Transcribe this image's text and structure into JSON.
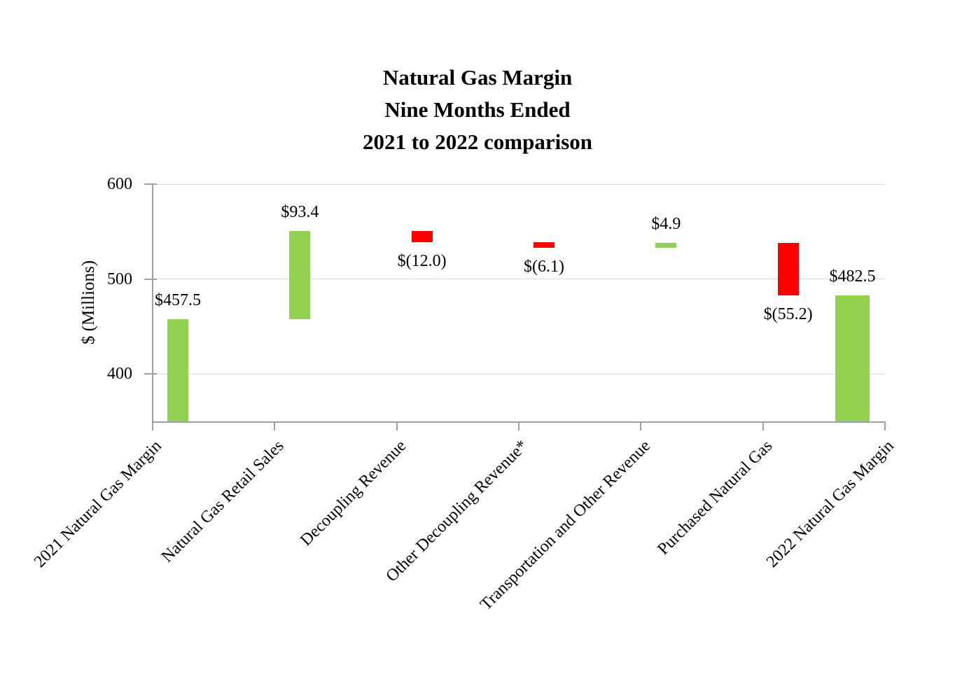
{
  "title": {
    "line1": "Natural Gas Margin",
    "line2": "Nine Months Ended",
    "line3": "2021 to 2022 comparison"
  },
  "chart_data": {
    "type": "waterfall",
    "title": "Natural Gas Margin Nine Months Ended 2021 to 2022 comparison",
    "ylabel": "$ (Millions)",
    "ylim": [
      350,
      600
    ],
    "yticks": [
      400,
      500,
      600
    ],
    "grid": true,
    "legend": "none",
    "categories": [
      "2021 Natural Gas Margin",
      "Natural Gas Retail Sales",
      "Decoupling Revenue",
      "Other Decoupling Revenue*",
      "Transportation and Other Revenue",
      "Purchased Natural Gas",
      "2022 Natural Gas Margin"
    ],
    "values": [
      457.5,
      93.4,
      -12.0,
      -6.1,
      4.9,
      -55.2,
      482.5
    ],
    "is_total": [
      true,
      false,
      false,
      false,
      false,
      false,
      true
    ],
    "cumulative": [
      [
        0,
        457.5
      ],
      [
        457.5,
        550.9
      ],
      [
        550.9,
        538.9
      ],
      [
        538.9,
        532.8
      ],
      [
        532.8,
        537.7
      ],
      [
        537.7,
        482.5
      ],
      [
        0,
        482.5
      ]
    ],
    "data_labels": [
      "$457.5",
      "$93.4",
      "$(12.0)",
      "$(6.1)",
      "$4.9",
      "$(55.2)",
      "$482.5"
    ],
    "colors": {
      "positive": "#92d050",
      "negative": "#ff0000",
      "axis": "#a0a0a0",
      "gridline": "#d9d9d9",
      "text": "#000000"
    }
  }
}
